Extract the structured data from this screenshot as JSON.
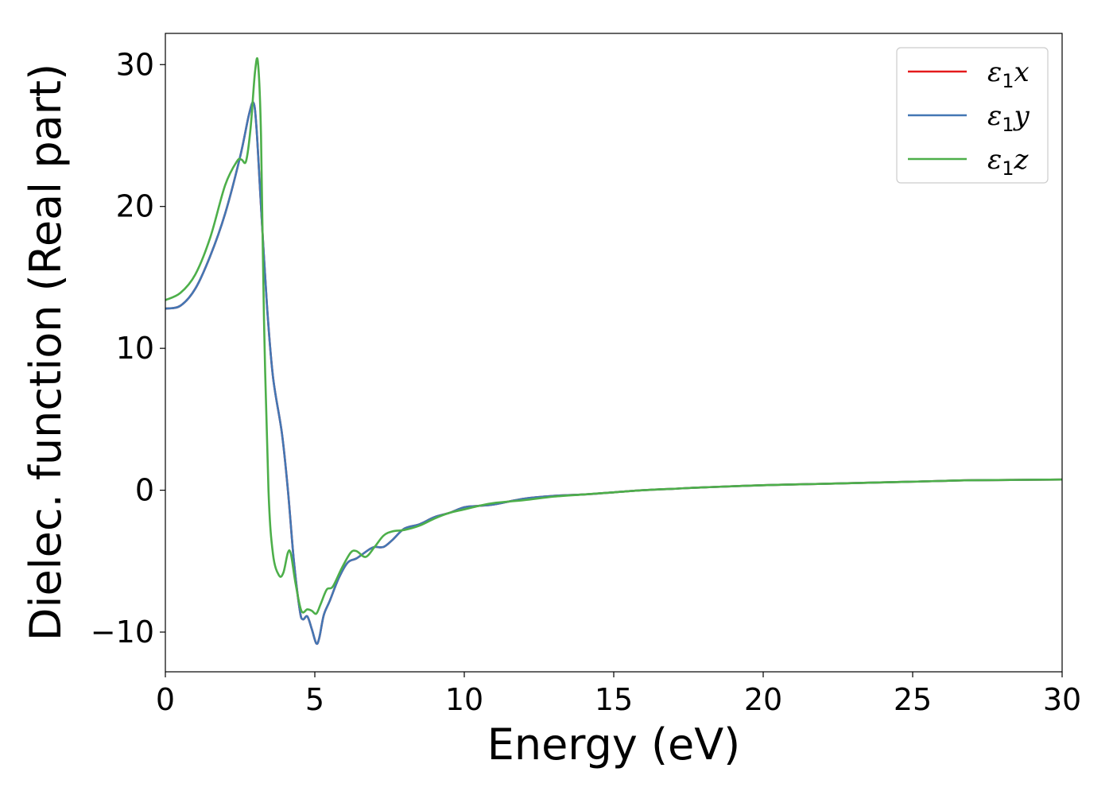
{
  "chart_data": {
    "type": "line",
    "title": "",
    "xlabel": "Energy (eV)",
    "ylabel": "Dielec. function (Real part)",
    "xlim": [
      0,
      30
    ],
    "ylim": [
      -12.8,
      32.2
    ],
    "xticks": [
      {
        "value": 0,
        "label": "0"
      },
      {
        "value": 5,
        "label": "5"
      },
      {
        "value": 10,
        "label": "10"
      },
      {
        "value": 15,
        "label": "15"
      },
      {
        "value": 20,
        "label": "20"
      },
      {
        "value": 25,
        "label": "25"
      },
      {
        "value": 30,
        "label": "30"
      }
    ],
    "yticks": [
      {
        "value": -10,
        "label": "−10"
      },
      {
        "value": 0,
        "label": "0"
      },
      {
        "value": 10,
        "label": "10"
      },
      {
        "value": 20,
        "label": "20"
      },
      {
        "value": 30,
        "label": "30"
      }
    ],
    "grid": false,
    "legend_position": "top-right",
    "series": [
      {
        "legend_symbol": "ε",
        "legend_subscript": "1",
        "legend_suffix": "x",
        "color": "#e41a1c",
        "x": [
          0,
          0.5,
          1.0,
          1.5,
          2.0,
          2.5,
          2.8,
          2.95,
          3.05,
          3.2,
          3.4,
          3.6,
          3.9,
          4.1,
          4.3,
          4.5,
          4.6,
          4.75,
          4.9,
          5.05,
          5.15,
          5.3,
          5.5,
          5.8,
          6.1,
          6.4,
          6.8,
          7.0,
          7.3,
          7.6,
          8.0,
          8.5,
          9.0,
          9.5,
          10.0,
          10.5,
          11.0,
          12.0,
          13.0,
          14.0,
          15.0,
          16.0,
          17.0,
          18.0,
          20.0,
          22.0,
          25.0,
          27.0,
          30.0
        ],
        "y": [
          12.8,
          13.0,
          14.2,
          16.5,
          19.5,
          23.5,
          26.5,
          27.3,
          25.5,
          20.0,
          13.0,
          8.0,
          4.0,
          0.0,
          -5.0,
          -8.5,
          -9.1,
          -8.9,
          -9.8,
          -10.8,
          -10.4,
          -8.8,
          -7.8,
          -6.2,
          -5.1,
          -4.8,
          -4.2,
          -4.0,
          -4.0,
          -3.5,
          -2.7,
          -2.4,
          -1.9,
          -1.6,
          -1.2,
          -1.1,
          -1.0,
          -0.6,
          -0.4,
          -0.3,
          -0.15,
          0.0,
          0.1,
          0.2,
          0.35,
          0.45,
          0.6,
          0.7,
          0.75
        ]
      },
      {
        "legend_symbol": "ε",
        "legend_subscript": "1",
        "legend_suffix": "y",
        "color": "#4377b4",
        "x": [
          0,
          0.5,
          1.0,
          1.5,
          2.0,
          2.5,
          2.8,
          2.95,
          3.05,
          3.2,
          3.4,
          3.6,
          3.9,
          4.1,
          4.3,
          4.5,
          4.6,
          4.75,
          4.9,
          5.05,
          5.15,
          5.3,
          5.5,
          5.8,
          6.1,
          6.4,
          6.8,
          7.0,
          7.3,
          7.6,
          8.0,
          8.5,
          9.0,
          9.5,
          10.0,
          10.5,
          11.0,
          12.0,
          13.0,
          14.0,
          15.0,
          16.0,
          17.0,
          18.0,
          20.0,
          22.0,
          25.0,
          27.0,
          30.0
        ],
        "y": [
          12.8,
          13.0,
          14.2,
          16.5,
          19.5,
          23.5,
          26.5,
          27.3,
          25.5,
          20.0,
          13.0,
          8.0,
          4.0,
          0.0,
          -5.0,
          -8.5,
          -9.1,
          -8.9,
          -9.8,
          -10.8,
          -10.4,
          -8.8,
          -7.8,
          -6.2,
          -5.1,
          -4.8,
          -4.2,
          -4.0,
          -4.0,
          -3.5,
          -2.7,
          -2.4,
          -1.9,
          -1.6,
          -1.2,
          -1.1,
          -1.0,
          -0.6,
          -0.4,
          -0.3,
          -0.15,
          0.0,
          0.1,
          0.2,
          0.35,
          0.45,
          0.6,
          0.7,
          0.75
        ]
      },
      {
        "legend_symbol": "ε",
        "legend_subscript": "1",
        "legend_suffix": "z",
        "color": "#4daf4a",
        "x": [
          0,
          0.5,
          1.0,
          1.5,
          2.0,
          2.4,
          2.55,
          2.7,
          2.85,
          3.0,
          3.1,
          3.2,
          3.3,
          3.45,
          3.6,
          3.8,
          3.95,
          4.1,
          4.2,
          4.35,
          4.55,
          4.75,
          4.9,
          5.05,
          5.2,
          5.4,
          5.6,
          5.9,
          6.2,
          6.4,
          6.7,
          7.0,
          7.3,
          7.6,
          8.0,
          8.5,
          9.0,
          9.5,
          10.0,
          10.5,
          11.0,
          12.0,
          13.0,
          14.0,
          15.0,
          16.0,
          17.0,
          18.0,
          20.0,
          22.0,
          25.0,
          27.0,
          30.0
        ],
        "y": [
          13.4,
          13.9,
          15.2,
          17.8,
          21.5,
          23.2,
          23.3,
          23.2,
          25.5,
          29.5,
          30.1,
          25.0,
          12.0,
          0.0,
          -4.5,
          -6.0,
          -5.8,
          -4.4,
          -4.5,
          -6.5,
          -8.5,
          -8.4,
          -8.5,
          -8.7,
          -8.0,
          -7.0,
          -6.8,
          -5.5,
          -4.4,
          -4.3,
          -4.7,
          -4.0,
          -3.2,
          -2.9,
          -2.8,
          -2.5,
          -2.0,
          -1.6,
          -1.35,
          -1.1,
          -0.9,
          -0.7,
          -0.45,
          -0.3,
          -0.15,
          0.0,
          0.1,
          0.2,
          0.35,
          0.45,
          0.6,
          0.7,
          0.75
        ]
      }
    ]
  }
}
